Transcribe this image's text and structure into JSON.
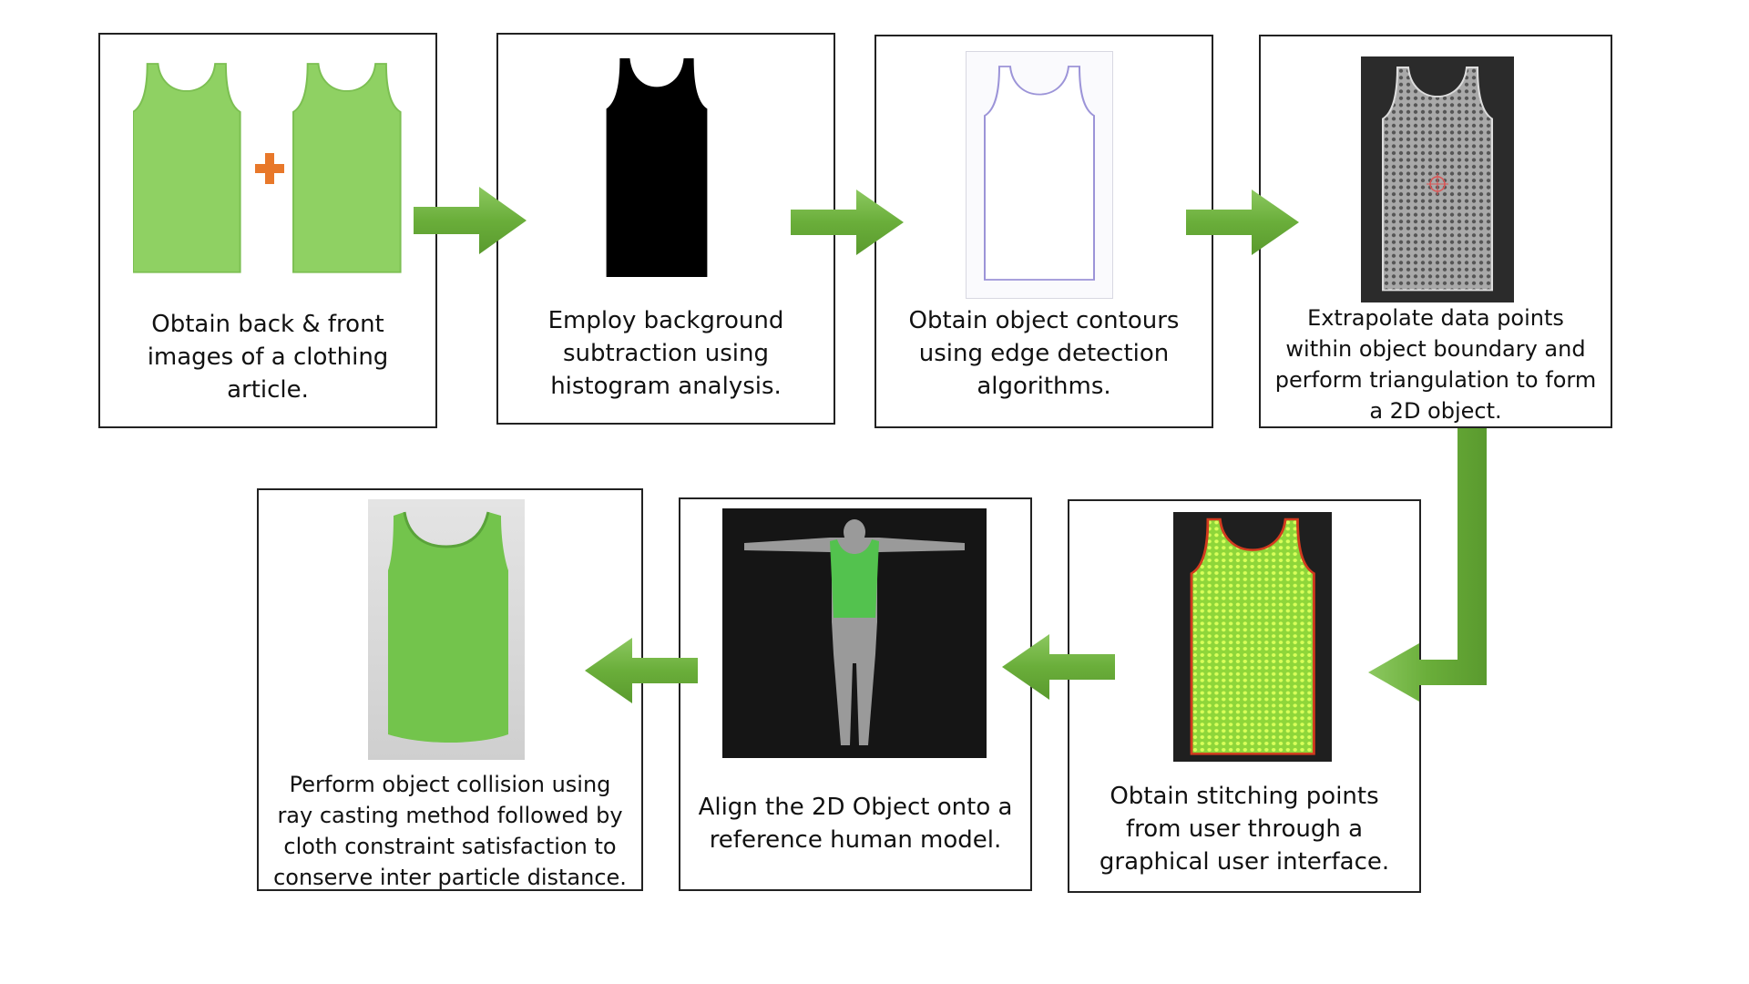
{
  "steps": [
    {
      "id": 1,
      "caption": "Obtain back & front images of a clothing article.",
      "image": "green-tank-top-front-back"
    },
    {
      "id": 2,
      "caption": "Employ background subtraction using histogram analysis.",
      "image": "black-silhouette"
    },
    {
      "id": 3,
      "caption": "Obtain object contours using edge detection algorithms.",
      "image": "outline-contour"
    },
    {
      "id": 4,
      "caption": "Extrapolate data points within object boundary and perform triangulation to form a 2D object.",
      "image": "point-grid-mesh"
    },
    {
      "id": 5,
      "caption": "Obtain stitching points from user through a graphical user interface.",
      "image": "stitch-points-mesh"
    },
    {
      "id": 6,
      "caption": "Align the 2D Object onto a reference human model.",
      "image": "human-model-with-shirt"
    },
    {
      "id": 7,
      "caption": "Perform object collision using ray casting method followed by cloth constraint satisfaction to conserve inter particle distance.",
      "image": "3d-draped-tank-top"
    }
  ],
  "colors": {
    "arrow": "#6db33f",
    "shirt": "#8fd163",
    "plus": "#e8782a",
    "mesh_bg": "#2b2b2b",
    "stitch_green": "#b8f03c",
    "stitch_red": "#d23a1e"
  }
}
